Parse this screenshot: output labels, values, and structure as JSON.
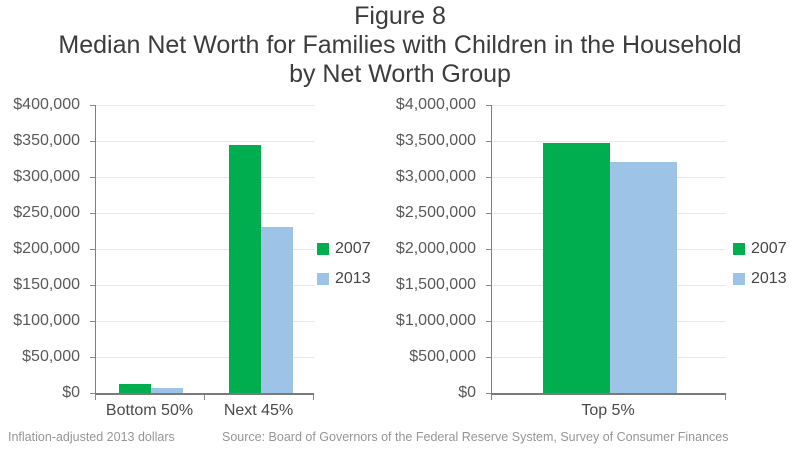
{
  "title": {
    "line1": "Figure 8",
    "line2": "Median Net Worth for Families with Children in the Household",
    "line3": "by Net Worth Group"
  },
  "footer": {
    "note": "Inflation-adjusted 2013 dollars",
    "source": "Source: Board of Governors of the Federal Reserve System, Survey of Consumer Finances"
  },
  "colors": {
    "series_2007": "#00ae4f",
    "series_2013": "#9dc3e6",
    "gridline": "#e7e7e7",
    "axis": "#7f7f7f",
    "title_text": "#3c3c3c",
    "axis_text": "#595959",
    "footer_text": "#969696"
  },
  "chart_data": [
    {
      "type": "bar",
      "title": "",
      "categories": [
        "Bottom 50%",
        "Next 45%"
      ],
      "series": [
        {
          "name": "2007",
          "values": [
            12000,
            344000
          ]
        },
        {
          "name": "2013",
          "values": [
            7000,
            230000
          ]
        }
      ],
      "xlabel": "",
      "ylabel": "",
      "ylim": [
        0,
        400000
      ],
      "ytick_step": 50000,
      "ytick_labels": [
        "$0",
        "$50,000",
        "$100,000",
        "$150,000",
        "$200,000",
        "$250,000",
        "$300,000",
        "$350,000",
        "$400,000"
      ],
      "grid": true,
      "legend_position": "right"
    },
    {
      "type": "bar",
      "title": "",
      "categories": [
        "Top 5%"
      ],
      "series": [
        {
          "name": "2007",
          "values": [
            3470000
          ]
        },
        {
          "name": "2013",
          "values": [
            3210000
          ]
        }
      ],
      "xlabel": "",
      "ylabel": "",
      "ylim": [
        0,
        4000000
      ],
      "ytick_step": 500000,
      "ytick_labels": [
        "$0",
        "$500,000",
        "$1,000,000",
        "$1,500,000",
        "$2,000,000",
        "$2,500,000",
        "$3,000,000",
        "$3,500,000",
        "$4,000,000"
      ],
      "grid": true,
      "legend_position": "right"
    }
  ]
}
